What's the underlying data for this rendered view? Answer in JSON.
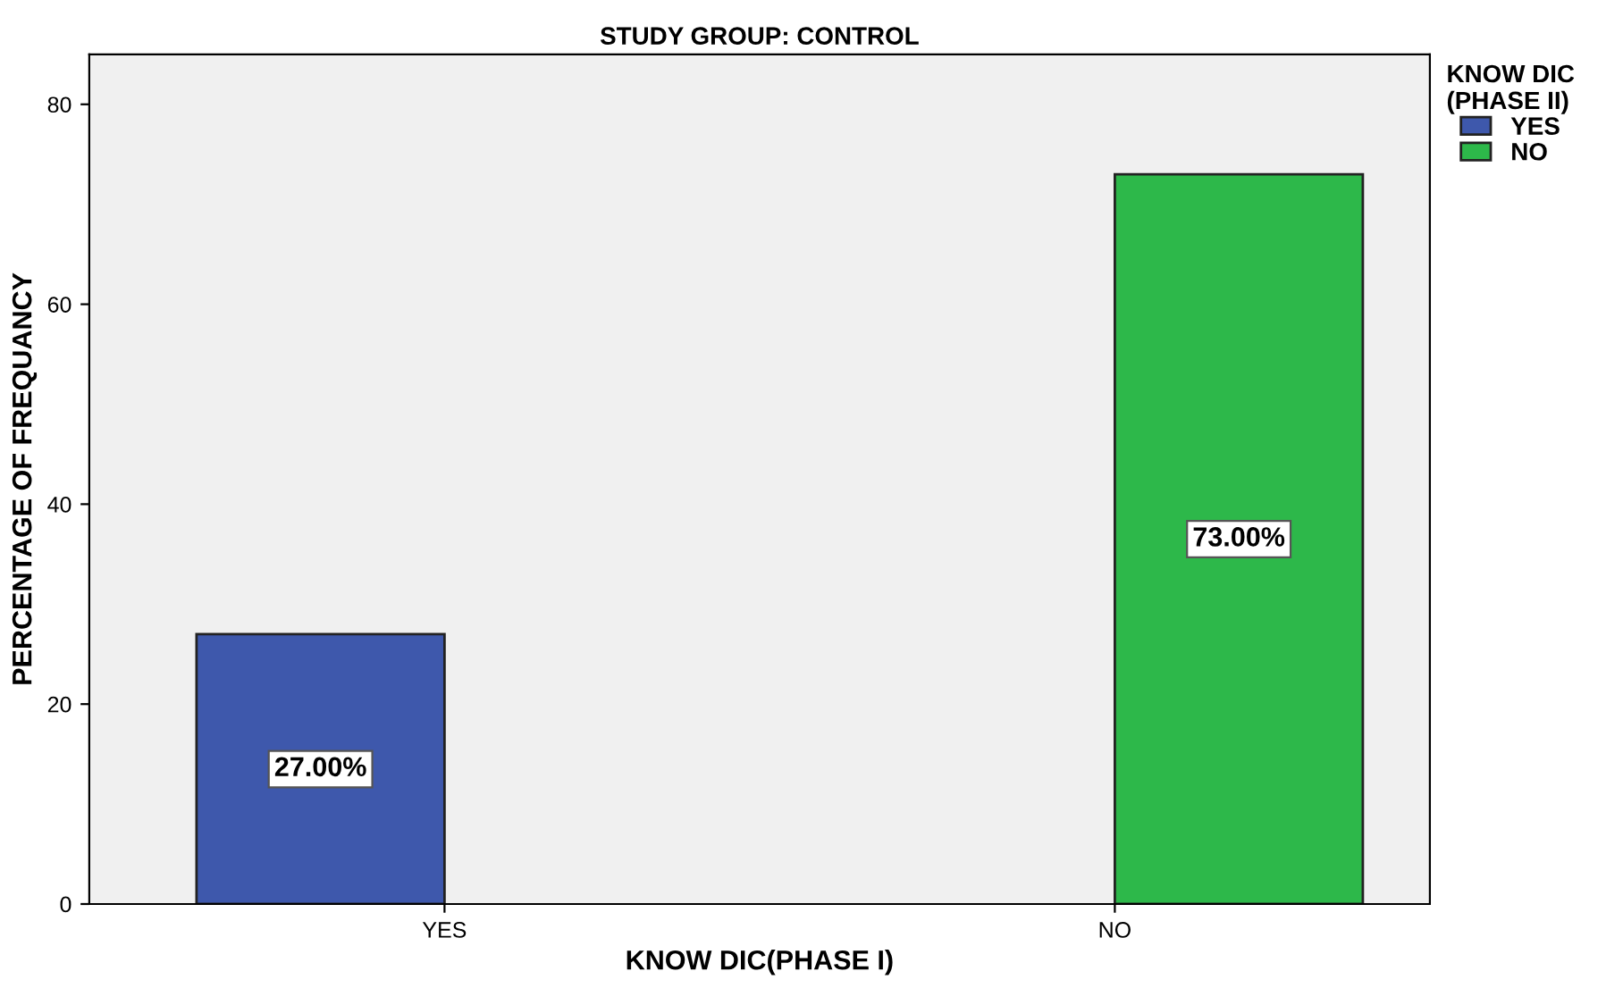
{
  "chart_data": {
    "type": "bar",
    "title": "STUDY GROUP: CONTROL",
    "xlabel": "KNOW DIC(PHASE I)",
    "ylabel": "PERCENTAGE OF FREQUANCY",
    "legend_title": "KNOW DIC\n(PHASE II)",
    "categories": [
      "YES",
      "NO"
    ],
    "series": [
      {
        "name": "YES",
        "color": "#3e58ac",
        "values": [
          27,
          null
        ],
        "value_labels": [
          "27.00%",
          null
        ]
      },
      {
        "name": "NO",
        "color": "#2db84a",
        "values": [
          null,
          73
        ],
        "value_labels": [
          null,
          "73.00%"
        ]
      }
    ],
    "ylim": [
      0,
      85
    ],
    "yticks": [
      0,
      20,
      40,
      60,
      80
    ],
    "grid": false,
    "legend": "top right"
  }
}
